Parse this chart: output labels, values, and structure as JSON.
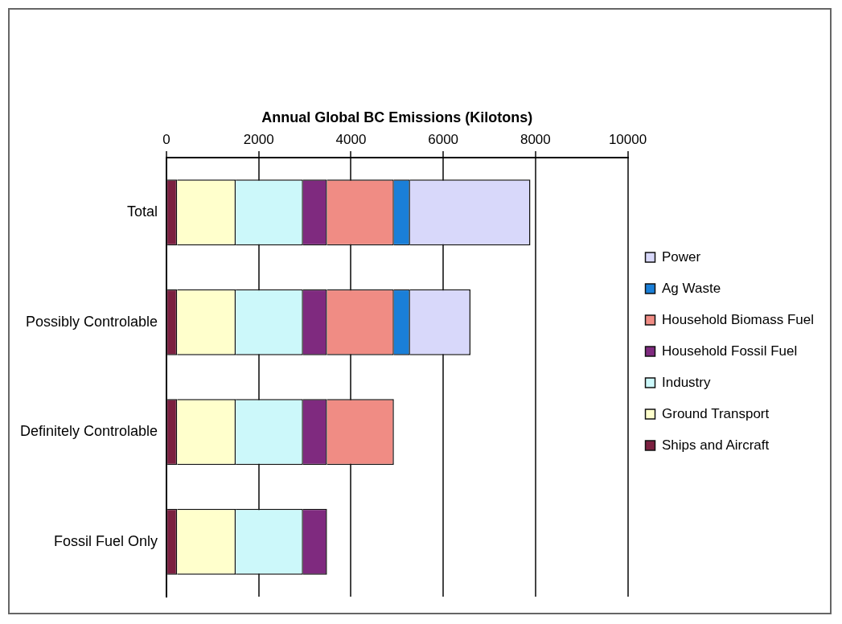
{
  "chart_data": {
    "type": "bar",
    "orientation": "horizontal",
    "stacked": true,
    "xlabel": "Annual Global BC Emissions (Kilotons)",
    "categories": [
      "Total",
      "Possibly Controlable",
      "Definitely Controlable",
      "Fossil Fuel Only"
    ],
    "series": [
      {
        "name": "Ships and Aircraft",
        "color": "#7b2040",
        "values": [
          230,
          230,
          230,
          230
        ]
      },
      {
        "name": "Ground Transport",
        "color": "#ffffcc",
        "values": [
          1270,
          1270,
          1270,
          1270
        ]
      },
      {
        "name": "Industry",
        "color": "#ccf8fa",
        "values": [
          1460,
          1460,
          1460,
          1460
        ]
      },
      {
        "name": "Household Fossil Fuel",
        "color": "#7f2a7f",
        "values": [
          520,
          520,
          520,
          520
        ]
      },
      {
        "name": "Household Biomass Fuel",
        "color": "#f08c84",
        "values": [
          1450,
          1450,
          1450,
          null
        ]
      },
      {
        "name": "Ag Waste",
        "color": "#1a7fd8",
        "values": [
          350,
          350,
          null,
          null
        ]
      },
      {
        "name": "Power",
        "color": "#d8d8fa",
        "values": [
          2610,
          1310,
          null,
          null
        ]
      }
    ],
    "xlim": [
      0,
      10000
    ],
    "xticks": [
      0,
      2000,
      4000,
      6000,
      8000,
      10000
    ],
    "grid": "x",
    "legend": "right"
  }
}
